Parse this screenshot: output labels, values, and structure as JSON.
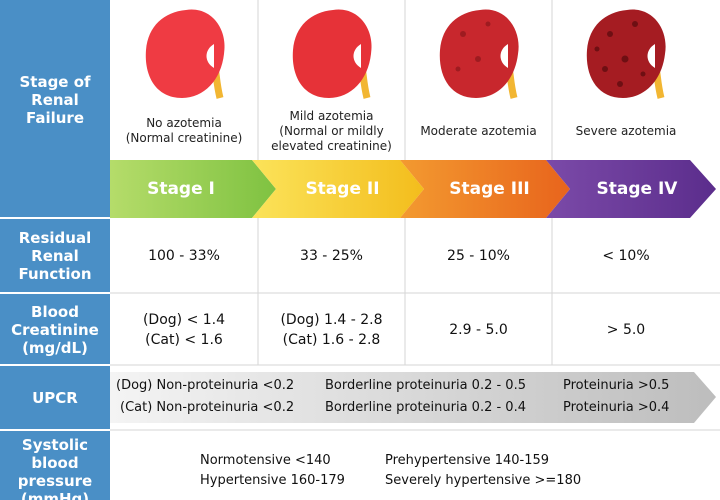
{
  "row_labels": [
    "Stage of Renal Failure",
    "Residual Renal Function",
    "Blood Creatinine (mg/dL)",
    "UPCR",
    "Systolic blood pressure (mmHg)"
  ],
  "stages": [
    {
      "description": [
        "No azotemia",
        "(Normal creatinine)"
      ],
      "name": "Stage I"
    },
    {
      "description": [
        "Mild azotemia",
        "(Normal or mildly",
        "elevated creatinine)"
      ],
      "name": "Stage II"
    },
    {
      "description": [
        "Moderate azotemia"
      ],
      "name": "Stage III"
    },
    {
      "description": [
        "Severe azotemia"
      ],
      "name": "Stage IV"
    }
  ],
  "residual_function": [
    "100 - 33%",
    "33 - 25%",
    "25 - 10%",
    "< 10%"
  ],
  "creatinine": [
    [
      "(Dog) < 1.4",
      "(Cat) < 1.6"
    ],
    [
      "(Dog) 1.4 - 2.8",
      "(Cat) 1.6 - 2.8"
    ],
    [
      "2.9 - 5.0"
    ],
    [
      "> 5.0"
    ]
  ],
  "upcr": {
    "dog": [
      "(Dog) Non-proteinuria <0.2",
      "Borderline proteinuria 0.2 - 0.5",
      "Proteinuria >0.5"
    ],
    "cat": [
      "(Cat) Non-proteinuria <0.2",
      "Borderline proteinuria 0.2 - 0.4",
      "Proteinuria >0.4"
    ]
  },
  "blood_pressure": [
    "Normotensive <140",
    "Prehypertensive 140-159",
    "Hypertensive 160-179",
    "Severely hypertensive >=180"
  ]
}
